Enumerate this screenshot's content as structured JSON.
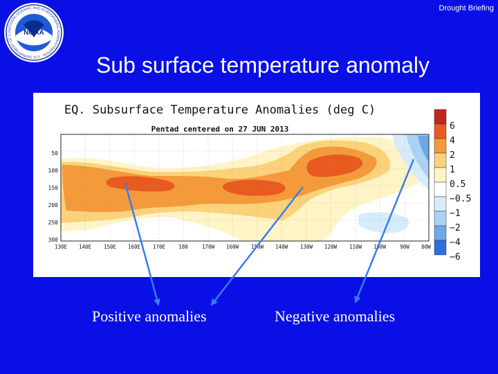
{
  "slide": {
    "header_tag": "Drought Briefing",
    "title": "Sub surface temperature anomaly"
  },
  "logo": {
    "center_text": "NOAA",
    "ring_text": "NATIONAL OCEANIC AND ATMOSPHERIC ADMINISTRATION · U.S. DEPARTMENT OF COMMERCE"
  },
  "figure": {
    "title": "EQ. Subsurface Temperature Anomalies (deg C)",
    "subtitle": "Pentad centered on 27 JUN 2013",
    "y_ticks": [
      "50",
      "100",
      "150",
      "200",
      "250",
      "300"
    ],
    "x_ticks": [
      "130E",
      "140E",
      "150E",
      "160E",
      "170E",
      "180",
      "170W",
      "160W",
      "150W",
      "140W",
      "130W",
      "120W",
      "110W",
      "100W",
      "90W",
      "80W"
    ],
    "legend": [
      {
        "label": "6",
        "color": "#c0281c"
      },
      {
        "label": "4",
        "color": "#e85a1f"
      },
      {
        "label": "2",
        "color": "#f49a3a"
      },
      {
        "label": "1",
        "color": "#fbd27a"
      },
      {
        "label": "0.5",
        "color": "#fff4c6"
      },
      {
        "label": "−0.5",
        "color": "#ffffff"
      },
      {
        "label": "−1",
        "color": "#d6ecfa"
      },
      {
        "label": "−2",
        "color": "#a9d2f4"
      },
      {
        "label": "−4",
        "color": "#6fa7ea"
      },
      {
        "label": "−6",
        "color": "#2f6fdc"
      }
    ]
  },
  "annotations": {
    "positive_label": "Positive anomalies",
    "negative_label": "Negative anomalies"
  },
  "colors": {
    "background": "#0a0fe6",
    "arrow": "#3a7bf0",
    "text": "#ffffff"
  }
}
